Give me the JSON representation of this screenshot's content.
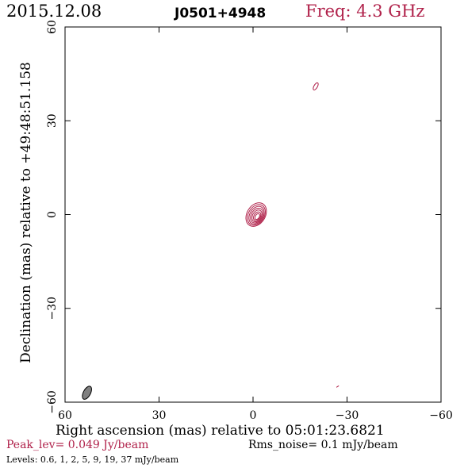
{
  "header": {
    "date": "2015.12.08",
    "source": "J0501+4948",
    "frequency": "Freq: 4.3 GHz"
  },
  "chart_data": {
    "type": "contour",
    "xlabel": "Right ascension (mas) relative to 05:01:23.6821",
    "ylabel": "Declination (mas) relative to +49:48:51.158",
    "xlim": [
      60,
      -60
    ],
    "ylim": [
      -60,
      60
    ],
    "x_ticks": [
      60,
      30,
      0,
      -30,
      -60
    ],
    "y_ticks": [
      -60,
      -30,
      0,
      30,
      60
    ],
    "x_tick_labels": [
      "60",
      "30",
      "0",
      "−30",
      "−60"
    ],
    "y_tick_labels": [
      "−60",
      "−30",
      "0",
      "30",
      "60"
    ],
    "peak_level": "Peak_lev=  0.049 Jy/beam",
    "rms_noise": "Rms_noise=   0.1 mJy/beam",
    "levels_text": "Levels: 0.6,    1,    2,    5,    9,   19,   37 mJy/beam",
    "levels_mjy": [
      0.6,
      1,
      2,
      5,
      9,
      19,
      37
    ],
    "core": {
      "x": -1,
      "y": 0
    },
    "extra_components": [
      {
        "x": -20,
        "y": 41
      },
      {
        "x": -27,
        "y": -55
      }
    ],
    "beam": {
      "x": 53,
      "y": -57
    },
    "colors": {
      "contour": "#b0214a",
      "beam": "#808080"
    }
  }
}
